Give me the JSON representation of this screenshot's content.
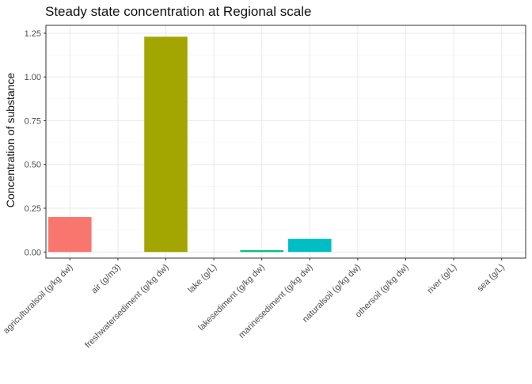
{
  "chart_data": {
    "type": "bar",
    "title": "Steady state concentration at Regional scale",
    "xlabel": "",
    "ylabel": "Concentration of substance",
    "categories": [
      "agriculturalsoil (g/kg dw)",
      "air (g/m3)",
      "freshwatersediment (g/kg dw)",
      "lake (g/L)",
      "lakesediment (g/kg dw)",
      "marinesediment (g/kg dw)",
      "naturalsoil (g/kg dw)",
      "othersoil (g/kg dw)",
      "river (g/L)",
      "sea (g/L)"
    ],
    "values": [
      0.2,
      0.0,
      1.23,
      0.0,
      0.01,
      0.075,
      0.0,
      0.0,
      0.0,
      0.0
    ],
    "colors": [
      "#F8766D",
      "#D89000",
      "#A3A500",
      "#39B600",
      "#00BF7D",
      "#00BFC4",
      "#00B0F6",
      "#9590FF",
      "#E76BF3",
      "#FF62BC"
    ],
    "yticks": [
      "0.00",
      "0.25",
      "0.50",
      "0.75",
      "1.00",
      "1.25"
    ],
    "ylim": [
      -0.035,
      1.295
    ],
    "grid": true,
    "legend": "none"
  }
}
